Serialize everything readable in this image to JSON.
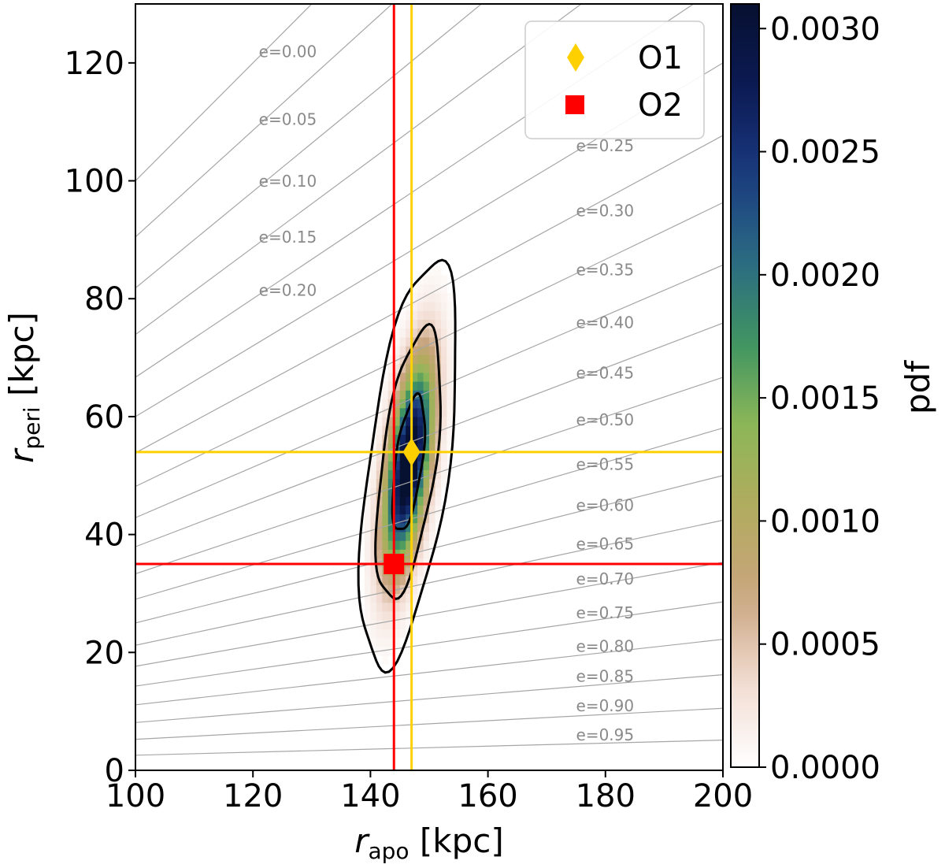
{
  "chart_data": {
    "type": "heatmap",
    "title": "",
    "xlabel": {
      "main": "r",
      "sub": "apo",
      "unit": " [kpc]"
    },
    "ylabel": {
      "main": "r",
      "sub": "peri",
      "unit": " [kpc]"
    },
    "xlim": [
      100,
      200
    ],
    "ylim": [
      0,
      130
    ],
    "xticks": [
      100,
      120,
      140,
      160,
      180,
      200
    ],
    "yticks": [
      0,
      20,
      40,
      60,
      80,
      100,
      120
    ],
    "xtick_labels": [
      "100",
      "120",
      "140",
      "160",
      "180",
      "200"
    ],
    "ytick_labels": [
      "0",
      "20",
      "40",
      "60",
      "80",
      "100",
      "120"
    ],
    "eccentricity_lines": {
      "values": [
        0.0,
        0.05,
        0.1,
        0.15,
        0.2,
        0.25,
        0.3,
        0.35,
        0.4,
        0.45,
        0.5,
        0.55,
        0.6,
        0.65,
        0.7,
        0.75,
        0.8,
        0.85,
        0.9,
        0.95
      ],
      "labels": [
        "e=0.00",
        "e=0.05",
        "e=0.10",
        "e=0.15",
        "e=0.20",
        "e=0.25",
        "e=0.30",
        "e=0.35",
        "e=0.40",
        "e=0.45",
        "e=0.50",
        "e=0.55",
        "e=0.60",
        "e=0.65",
        "e=0.70",
        "e=0.75",
        "e=0.80",
        "e=0.85",
        "e=0.90",
        "e=0.95"
      ],
      "label_x": [
        121,
        121,
        121,
        121,
        121,
        175,
        175,
        175,
        175,
        175,
        175,
        175,
        175,
        175,
        175,
        175,
        175,
        175,
        175,
        175
      ],
      "label_y": [
        121,
        109.5,
        99,
        89.5,
        80.5,
        105,
        94,
        84,
        75,
        66.5,
        58.5,
        51,
        44,
        37.5,
        31.5,
        25.8,
        20.1,
        15,
        10,
        5.1
      ],
      "color": "#a6a6a6"
    },
    "heatmap": {
      "center": [
        146.5,
        52
      ],
      "sigma_major": 11.5,
      "sigma_minor": 2.3,
      "tilt_dx_per_dy": 0.13,
      "peak_pdf": 0.0031,
      "contour_levels_sigma": [
        1,
        2,
        3
      ]
    },
    "colorbar": {
      "label": "pdf",
      "ticks": [
        0.0,
        0.0005,
        0.001,
        0.0015,
        0.002,
        0.0025,
        0.003
      ],
      "tick_labels": [
        "0.0000",
        "0.0005",
        "0.0010",
        "0.0015",
        "0.0020",
        "0.0025",
        "0.0030"
      ],
      "vmin": 0.0,
      "vmax": 0.0031,
      "colormap_stops": [
        "#ffffff",
        "#f2dcd2",
        "#c9a57f",
        "#b3aa5f",
        "#8fb858",
        "#3f9461",
        "#2a6a84",
        "#1a3a7f",
        "#0c1a55",
        "#061030"
      ]
    },
    "markers": [
      {
        "name": "O1",
        "shape": "diamond",
        "x": 147,
        "y": 54,
        "color": "#ffd000"
      },
      {
        "name": "O2",
        "shape": "square",
        "x": 144,
        "y": 35,
        "color": "#ff0000"
      }
    ],
    "reference_lines": [
      {
        "orientation": "vertical",
        "value": 147,
        "color": "#ffd000"
      },
      {
        "orientation": "horizontal",
        "value": 54,
        "color": "#ffd000"
      },
      {
        "orientation": "vertical",
        "value": 144,
        "color": "#ff0000"
      },
      {
        "orientation": "horizontal",
        "value": 35,
        "color": "#ff0000"
      }
    ],
    "legend": {
      "position": "top-right",
      "entries": [
        "O1",
        "O2"
      ]
    }
  }
}
